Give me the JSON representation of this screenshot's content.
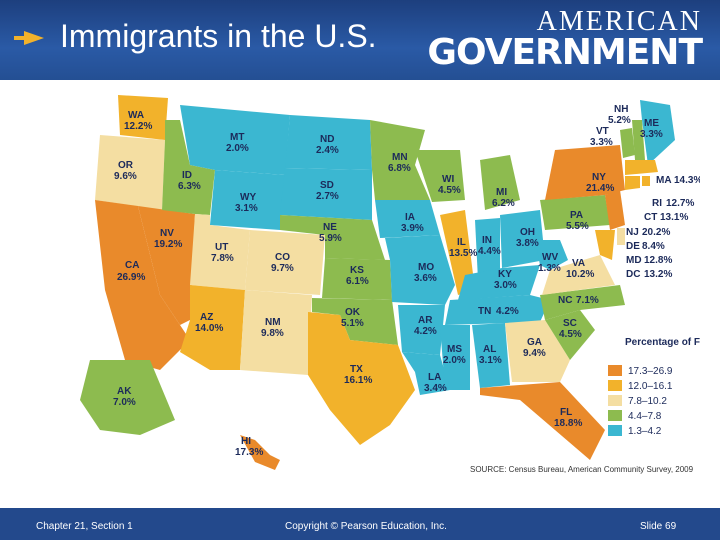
{
  "slide_title": "Immigrants in the U.S.",
  "brand": {
    "line1": "AMERICAN",
    "line2": "GOVERNMENT"
  },
  "footer": {
    "chapter": "Chapter 21, Section 1",
    "copyright": "Copyright © Pearson Education, Inc.",
    "slide": "Slide 69"
  },
  "legend": {
    "title": "Percentage of Foreign-born People",
    "items": [
      {
        "range": "17.3–26.9",
        "color": "#e98a2b"
      },
      {
        "range": "12.0–16.1",
        "color": "#f2b22b"
      },
      {
        "range": "7.8–10.2",
        "color": "#f4dea2"
      },
      {
        "range": "4.4–7.8",
        "color": "#8dbb4f"
      },
      {
        "range": "1.3–4.2",
        "color": "#3bb7d1"
      }
    ]
  },
  "source": "SOURCE: Census Bureau, American Community Survey, 2009",
  "states": [
    {
      "code": "WA",
      "value": "12.2%"
    },
    {
      "code": "OR",
      "value": "9.6%"
    },
    {
      "code": "CA",
      "value": "26.9%"
    },
    {
      "code": "NV",
      "value": "19.2%"
    },
    {
      "code": "ID",
      "value": "6.3%"
    },
    {
      "code": "MT",
      "value": "2.0%"
    },
    {
      "code": "WY",
      "value": "3.1%"
    },
    {
      "code": "UT",
      "value": "7.8%"
    },
    {
      "code": "CO",
      "value": "9.7%"
    },
    {
      "code": "AZ",
      "value": "14.0%"
    },
    {
      "code": "NM",
      "value": "9.8%"
    },
    {
      "code": "ND",
      "value": "2.4%"
    },
    {
      "code": "SD",
      "value": "2.7%"
    },
    {
      "code": "NE",
      "value": "5.9%"
    },
    {
      "code": "KS",
      "value": "6.1%"
    },
    {
      "code": "OK",
      "value": "5.1%"
    },
    {
      "code": "TX",
      "value": "16.1%"
    },
    {
      "code": "MN",
      "value": "6.8%"
    },
    {
      "code": "IA",
      "value": "3.9%"
    },
    {
      "code": "MO",
      "value": "3.6%"
    },
    {
      "code": "AR",
      "value": "4.2%"
    },
    {
      "code": "LA",
      "value": "3.4%"
    },
    {
      "code": "WI",
      "value": "4.5%"
    },
    {
      "code": "IL",
      "value": "13.5%"
    },
    {
      "code": "MI",
      "value": "6.2%"
    },
    {
      "code": "IN",
      "value": "4.4%"
    },
    {
      "code": "OH",
      "value": "3.8%"
    },
    {
      "code": "KY",
      "value": "3.0%"
    },
    {
      "code": "TN",
      "value": "4.2%"
    },
    {
      "code": "MS",
      "value": "2.0%"
    },
    {
      "code": "AL",
      "value": "3.1%"
    },
    {
      "code": "GA",
      "value": "9.4%"
    },
    {
      "code": "FL",
      "value": "18.8%"
    },
    {
      "code": "SC",
      "value": "4.5%"
    },
    {
      "code": "NC",
      "value": "7.1%"
    },
    {
      "code": "VA",
      "value": "10.2%"
    },
    {
      "code": "WV",
      "value": "1.3%"
    },
    {
      "code": "PA",
      "value": "5.5%"
    },
    {
      "code": "NY",
      "value": "21.4%"
    },
    {
      "code": "VT",
      "value": "3.3%"
    },
    {
      "code": "NH",
      "value": "5.2%"
    },
    {
      "code": "ME",
      "value": "3.3%"
    },
    {
      "code": "MA",
      "value": "14.3%"
    },
    {
      "code": "RI",
      "value": "12.7%"
    },
    {
      "code": "CT",
      "value": "13.1%"
    },
    {
      "code": "NJ",
      "value": "20.2%"
    },
    {
      "code": "DE",
      "value": "8.4%"
    },
    {
      "code": "MD",
      "value": "12.8%"
    },
    {
      "code": "DC",
      "value": "13.2%"
    },
    {
      "code": "AK",
      "value": "7.0%"
    },
    {
      "code": "HI",
      "value": "17.3%"
    }
  ]
}
